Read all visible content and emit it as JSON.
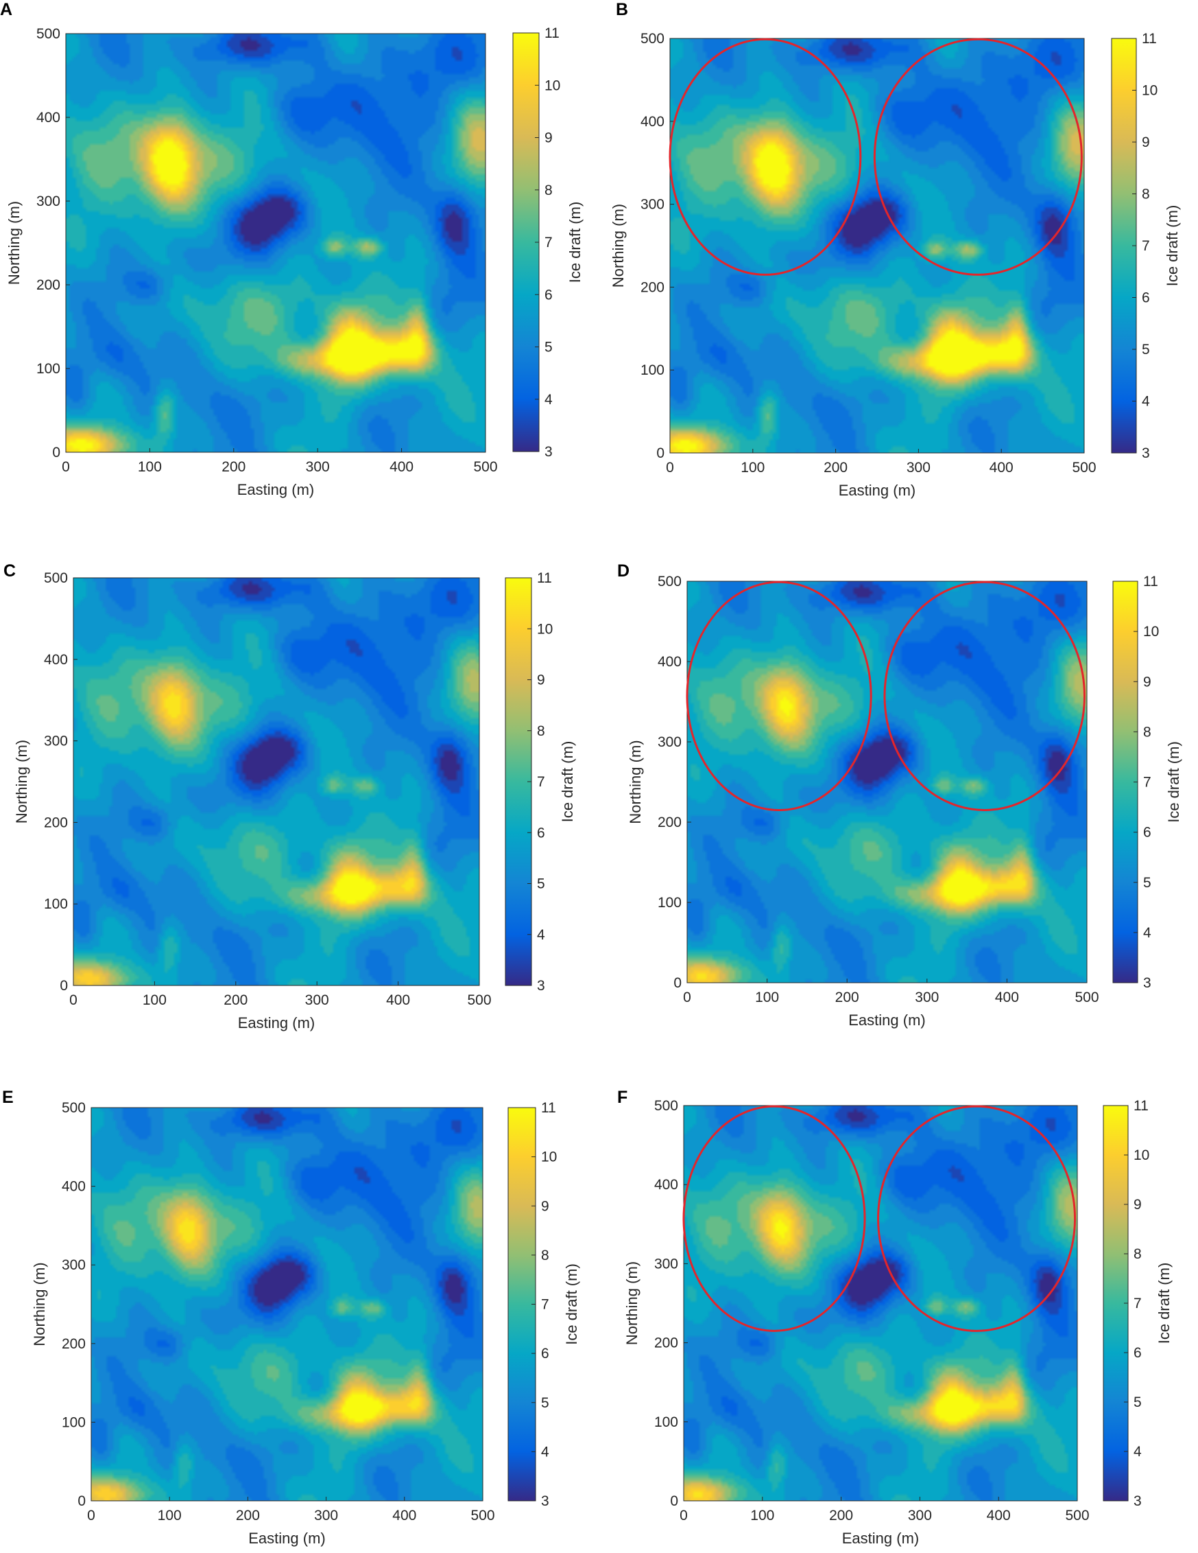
{
  "colorbar": {
    "label": "Ice draft (m)",
    "min": 3,
    "max": 11,
    "ticks": [
      3,
      4,
      5,
      6,
      7,
      8,
      9,
      10,
      11
    ]
  },
  "axes": {
    "xlabel": "Easting (m)",
    "ylabel": "Northing (m)",
    "xlim": [
      0,
      500
    ],
    "ylim": [
      0,
      500
    ],
    "ticks": [
      0,
      100,
      200,
      300,
      400,
      500
    ]
  },
  "colormap": [
    "#352a87",
    "#0363e1",
    "#1485d4",
    "#06a7c6",
    "#38b99e",
    "#92bf73",
    "#d9ba56",
    "#fcce2e",
    "#f9fb0e"
  ],
  "annotation_color": "#e3252b",
  "panels": [
    {
      "letter": "A",
      "circles": false,
      "intensity": 1.0
    },
    {
      "letter": "B",
      "circles": true,
      "intensity": 1.0
    },
    {
      "letter": "C",
      "circles": false,
      "intensity": 0.78
    },
    {
      "letter": "D",
      "circles": true,
      "intensity": 0.82
    },
    {
      "letter": "E",
      "circles": false,
      "intensity": 0.78
    },
    {
      "letter": "F",
      "circles": true,
      "intensity": 0.82
    }
  ],
  "chart_data": [
    {
      "type": "heatmap",
      "panel": "A"
    },
    {
      "type": "heatmap",
      "panel": "B",
      "annotations": [
        {
          "shape": "ellipse",
          "center": [
            115,
            357
          ],
          "radii": [
            115,
            142
          ]
        },
        {
          "shape": "ellipse",
          "center": [
            372,
            357
          ],
          "radii": [
            125,
            142
          ]
        }
      ]
    },
    {
      "type": "heatmap",
      "panel": "C"
    },
    {
      "type": "heatmap",
      "panel": "D",
      "annotations": [
        {
          "shape": "ellipse",
          "center": [
            115,
            357
          ],
          "radii": [
            115,
            142
          ]
        },
        {
          "shape": "ellipse",
          "center": [
            372,
            357
          ],
          "radii": [
            125,
            142
          ]
        }
      ]
    },
    {
      "type": "heatmap",
      "panel": "E"
    },
    {
      "type": "heatmap",
      "panel": "F",
      "annotations": [
        {
          "shape": "ellipse",
          "center": [
            115,
            357
          ],
          "radii": [
            115,
            142
          ]
        },
        {
          "shape": "ellipse",
          "center": [
            372,
            357
          ],
          "radii": [
            125,
            142
          ]
        }
      ]
    }
  ]
}
